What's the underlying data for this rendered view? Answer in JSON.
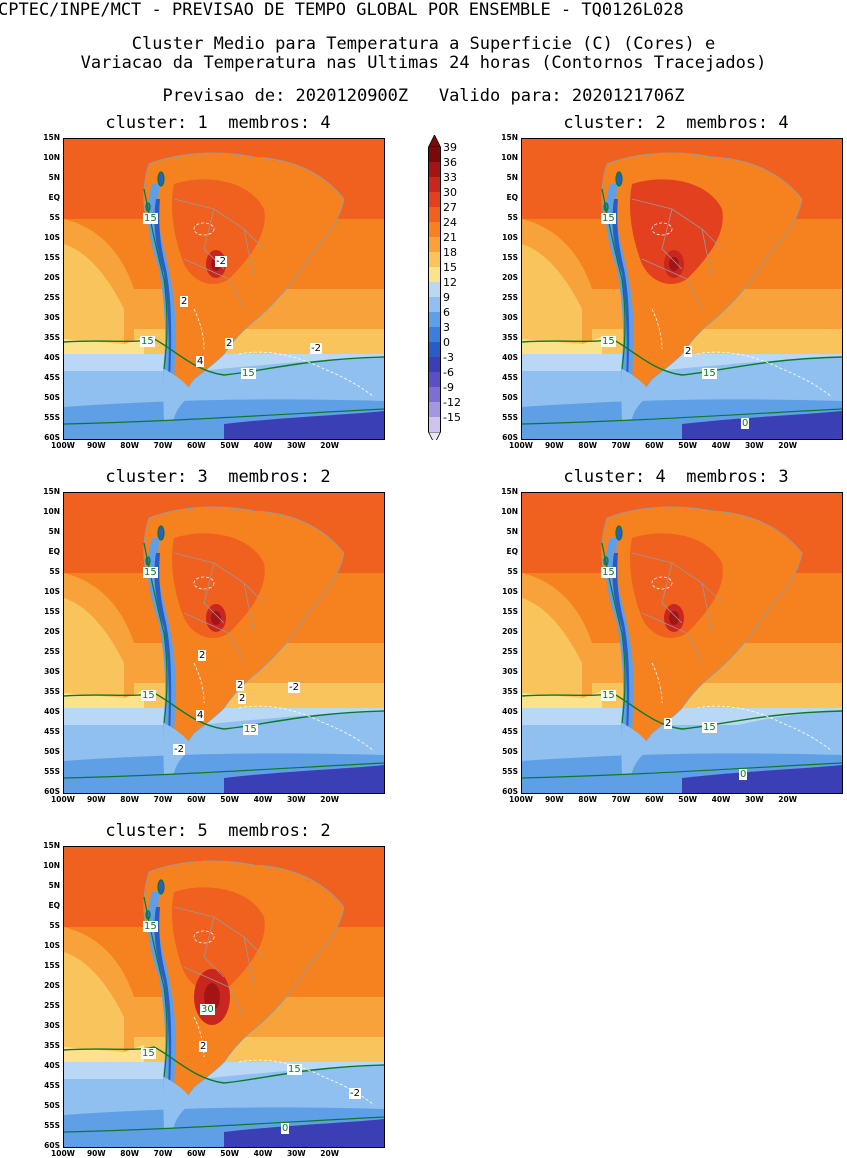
{
  "header": {
    "line1": "CPTEC/INPE/MCT - PREVISAO DE TEMPO GLOBAL POR ENSEMBLE - TQ0126L028",
    "line2": "Cluster Medio para Temperatura a Superficie (C) (Cores) e",
    "line3": "Variacao da Temperatura nas Ultimas 24 horas (Contornos Tracejados)",
    "line4": "Previsao de: 2020120900Z   Valido para: 2020121706Z"
  },
  "axes": {
    "lat_labels": [
      "15N",
      "10N",
      "5N",
      "EQ",
      "5S",
      "10S",
      "15S",
      "20S",
      "25S",
      "30S",
      "35S",
      "40S",
      "45S",
      "50S",
      "55S",
      "60S"
    ],
    "lon_labels": [
      "100W",
      "90W",
      "80W",
      "70W",
      "60W",
      "50W",
      "40W",
      "30W",
      "20W"
    ]
  },
  "colorbar": {
    "labels": [
      "39",
      "36",
      "33",
      "30",
      "27",
      "24",
      "21",
      "18",
      "15",
      "12",
      "9",
      "6",
      "3",
      "0",
      "-3",
      "-6",
      "-9",
      "-12",
      "-15"
    ],
    "colors": [
      "#7a0a0a",
      "#a31515",
      "#c9261f",
      "#e2401f",
      "#f0601e",
      "#f5821f",
      "#f7a23a",
      "#f9c45c",
      "#fbe38c",
      "#b9d8f5",
      "#8fc0ef",
      "#5f9fe6",
      "#3c7ed8",
      "#2a5cc6",
      "#3b3fb6",
      "#5b4fc4",
      "#7d6fd2",
      "#a596e0",
      "#cfc4ee"
    ]
  },
  "panels": [
    {
      "title": "cluster: 1  membros: 4",
      "labels": [
        "15",
        "-2",
        "2",
        "15",
        "2",
        "4",
        "15",
        "-2"
      ]
    },
    {
      "title": "cluster: 2  membros: 4",
      "labels": [
        "15",
        "15",
        "2",
        "15",
        "0"
      ]
    },
    {
      "title": "cluster: 3  membros: 2",
      "labels": [
        "15",
        "2",
        "2",
        "-2",
        "15",
        "2",
        "4",
        "15",
        "-2"
      ]
    },
    {
      "title": "cluster: 4  membros: 3",
      "labels": [
        "15",
        "15",
        "2",
        "15",
        "0"
      ]
    },
    {
      "title": "cluster: 5  membros: 2",
      "labels": [
        "15",
        "30",
        "2",
        "15",
        "15",
        "-2",
        "0"
      ]
    }
  ]
}
